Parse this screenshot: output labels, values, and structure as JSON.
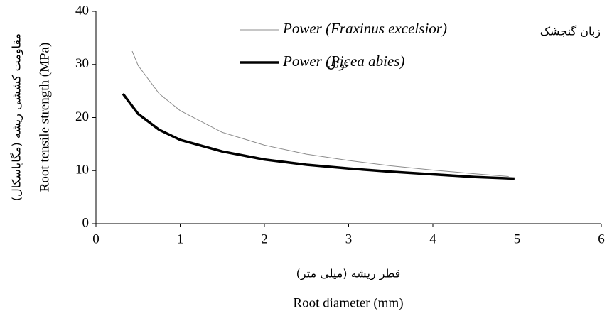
{
  "chart_data": {
    "type": "line",
    "xlabel": "Root diameter (mm)",
    "xlabel_fa": "قطر ریشه (میلی متر)",
    "ylabel": "Root tensile strength (MPa)",
    "ylabel_fa": "مقاومت کششی ریشه (مگاپاسکال)",
    "xlim": [
      0,
      6
    ],
    "xticks": [
      0,
      1,
      2,
      3,
      4,
      5,
      6
    ],
    "ylim": [
      0,
      40
    ],
    "yticks": [
      0,
      10,
      20,
      30,
      40
    ],
    "grid": false,
    "series": [
      {
        "name": "Power (Fraxinus excelsior)",
        "label_fa": "زبان گنجشک",
        "color": "#8c8c8c",
        "x": [
          0.43,
          0.5,
          0.75,
          1,
          1.5,
          2,
          2.5,
          3,
          3.5,
          4,
          4.5,
          4.9
        ],
        "values": [
          32.5,
          29.8,
          24.5,
          21.3,
          17.2,
          14.8,
          13.1,
          11.9,
          10.9,
          10.1,
          9.4,
          8.9
        ]
      },
      {
        "name": "Power (Picea abies)",
        "label_fa": "نوئل",
        "color": "#000000",
        "x": [
          0.32,
          0.5,
          0.75,
          1,
          1.5,
          2,
          2.5,
          3,
          3.5,
          4,
          4.5,
          4.97
        ],
        "values": [
          24.5,
          20.7,
          17.7,
          15.8,
          13.6,
          12.1,
          11.1,
          10.4,
          9.8,
          9.3,
          8.8,
          8.5
        ]
      }
    ]
  }
}
